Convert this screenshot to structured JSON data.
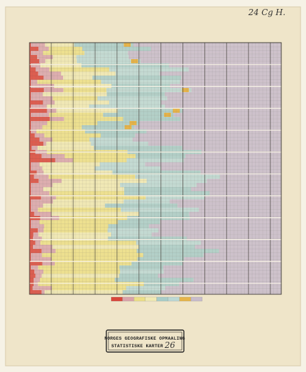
{
  "header": {
    "catalog_mark": "24 Cg H."
  },
  "stamp": {
    "line1": "NORGES GEOGRAFISKE OPMAALING",
    "line2": "STATISTISKE KARTER",
    "number": "26"
  }
}
